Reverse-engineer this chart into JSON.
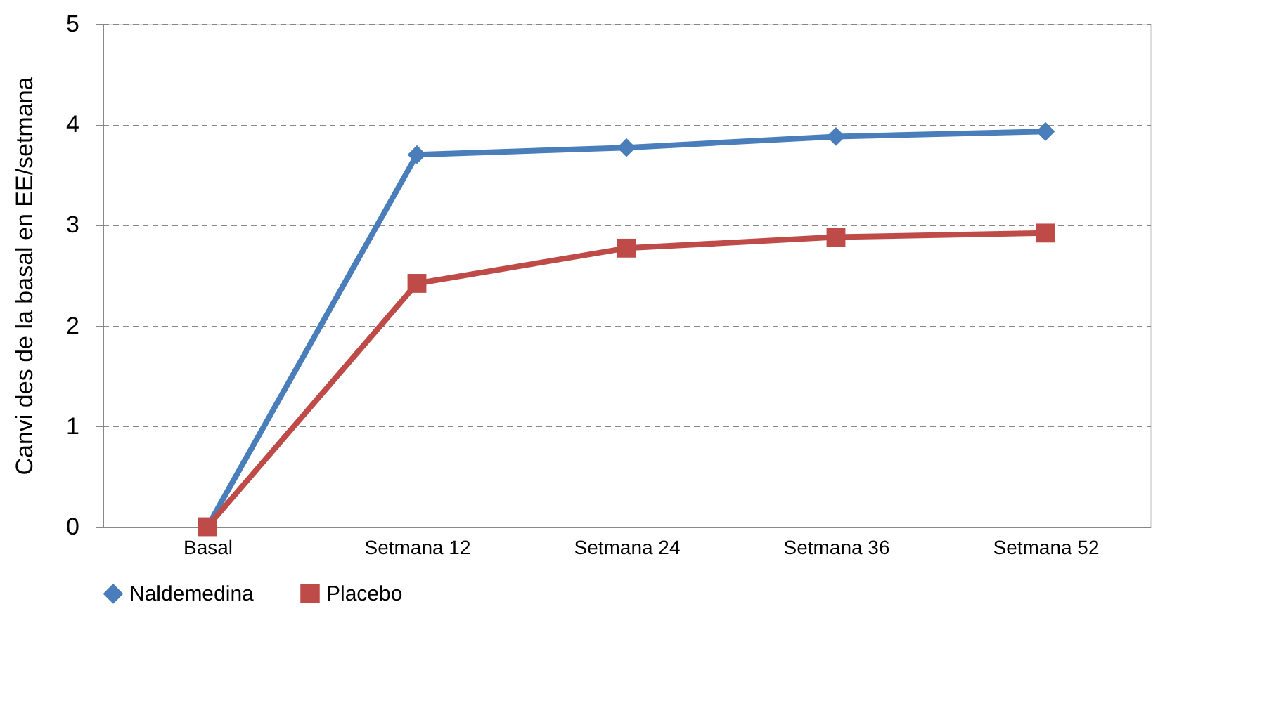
{
  "chart_data": {
    "type": "line",
    "ylabel": "Canvi des de la basal en EE/setmana",
    "categories": [
      "Basal",
      "Setmana 12",
      "Setmana 24",
      "Setmana 36",
      "Setmana 52"
    ],
    "series": [
      {
        "name": "Naldemedina",
        "color": "#4a7ebb",
        "marker": "diamond",
        "values": [
          0,
          3.7,
          3.77,
          3.88,
          3.93
        ]
      },
      {
        "name": "Placebo",
        "color": "#be4b48",
        "marker": "square",
        "values": [
          0,
          2.42,
          2.77,
          2.88,
          2.92
        ]
      }
    ],
    "ylim": [
      0,
      5
    ],
    "yticks": [
      0,
      1,
      2,
      3,
      4,
      5
    ],
    "grid": "y",
    "legend": "bottom"
  }
}
